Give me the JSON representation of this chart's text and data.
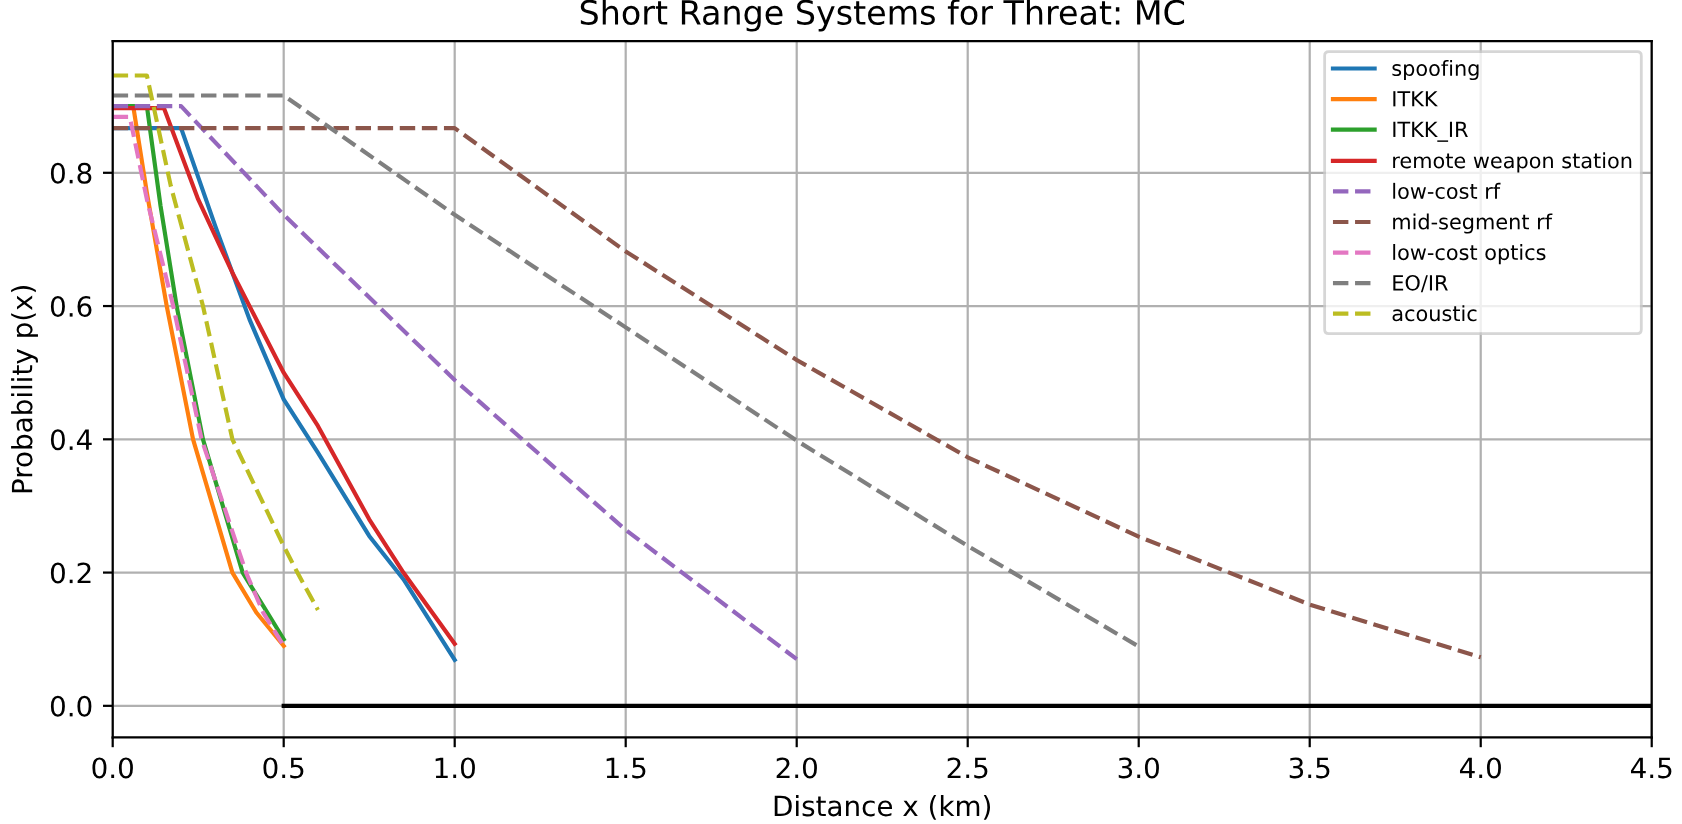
{
  "chart_data": {
    "type": "line",
    "title": "Short Range Systems for Threat: MC",
    "xlabel": "Distance x (km)",
    "ylabel": "Probability p(x)",
    "xlim": [
      0,
      4.5
    ],
    "xticks": [
      {
        "value": 0,
        "label": "0.0"
      },
      0.5,
      {
        "value": 1,
        "label": "1.0"
      },
      1.5,
      {
        "value": 2,
        "label": "2.0"
      },
      2.5,
      {
        "value": 3,
        "label": "3.0"
      },
      3.5,
      {
        "value": 4,
        "label": "4.0"
      },
      4.5
    ],
    "ylim": [
      -0.0475,
      0.9975
    ],
    "yticks": [
      {
        "value": 0,
        "label": "0.0"
      },
      0.2,
      0.4,
      0.6,
      0.8
    ],
    "grid": true,
    "legend": "top right",
    "marker": "none",
    "series": [
      {
        "name": "spoofing",
        "color": "#1f77b4",
        "line_style": "solid",
        "x": [
          0,
          0.2,
          0.3,
          0.4,
          0.5,
          0.6,
          0.75,
          0.85,
          1.0
        ],
        "values": [
          0.867,
          0.867,
          0.72,
          0.58,
          0.46,
          0.38,
          0.255,
          0.19,
          0.069
        ]
      },
      {
        "name": "ITKK",
        "color": "#ff7f0e",
        "line_style": "solid",
        "x": [
          0,
          0.06,
          0.1,
          0.158,
          0.235,
          0.35,
          0.42,
          0.5
        ],
        "values": [
          0.9,
          0.9,
          0.77,
          0.6,
          0.4,
          0.2,
          0.14,
          0.09
        ]
      },
      {
        "name": "ITKK_IR",
        "color": "#2ca02c",
        "line_style": "solid",
        "x": [
          0,
          0.1,
          0.14,
          0.187,
          0.264,
          0.38,
          0.44,
          0.5
        ],
        "values": [
          0.9,
          0.9,
          0.75,
          0.6,
          0.4,
          0.2,
          0.15,
          0.1
        ]
      },
      {
        "name": "remote weapon station",
        "color": "#d62728",
        "line_style": "solid",
        "x": [
          0,
          0.15,
          0.25,
          0.35,
          0.5,
          0.6,
          0.75,
          0.85,
          1.0
        ],
        "values": [
          0.897,
          0.897,
          0.76,
          0.65,
          0.5,
          0.42,
          0.28,
          0.2,
          0.093
        ]
      },
      {
        "name": "low-cost rf",
        "color": "#9467bd",
        "line_style": "dashed",
        "x": [
          0,
          0.2,
          0.5,
          1.0,
          1.5,
          2.0
        ],
        "values": [
          0.9,
          0.9,
          0.737,
          0.489,
          0.264,
          0.07
        ]
      },
      {
        "name": "mid-segment rf",
        "color": "#8c564b",
        "line_style": "dashed",
        "x": [
          0,
          1.0,
          1.5,
          2.0,
          2.5,
          3.0,
          3.5,
          4.0
        ],
        "values": [
          0.867,
          0.867,
          0.682,
          0.519,
          0.373,
          0.254,
          0.152,
          0.073
        ]
      },
      {
        "name": "low-cost optics",
        "color": "#e377c2",
        "line_style": "dashed",
        "x": [
          0,
          0.05,
          0.1,
          0.177,
          0.26,
          0.39,
          0.44,
          0.5
        ],
        "values": [
          0.884,
          0.884,
          0.76,
          0.6,
          0.4,
          0.2,
          0.14,
          0.09
        ]
      },
      {
        "name": "EO/IR",
        "color": "#7f7f7f",
        "line_style": "dashed",
        "x": [
          0,
          0.5,
          1.0,
          1.5,
          2.0,
          2.5,
          3.0
        ],
        "values": [
          0.916,
          0.916,
          0.737,
          0.568,
          0.398,
          0.24,
          0.089
        ]
      },
      {
        "name": "acoustic",
        "color": "#bcbd22",
        "line_style": "dashed",
        "x": [
          0,
          0.1,
          0.17,
          0.264,
          0.35,
          0.5,
          0.54,
          0.6
        ],
        "values": [
          0.946,
          0.946,
          0.78,
          0.6,
          0.4,
          0.24,
          0.2,
          0.144
        ]
      },
      {
        "color": "#000000",
        "line_style": "solid",
        "x": [
          0.5,
          4.5
        ],
        "values": [
          0,
          0
        ]
      }
    ]
  }
}
